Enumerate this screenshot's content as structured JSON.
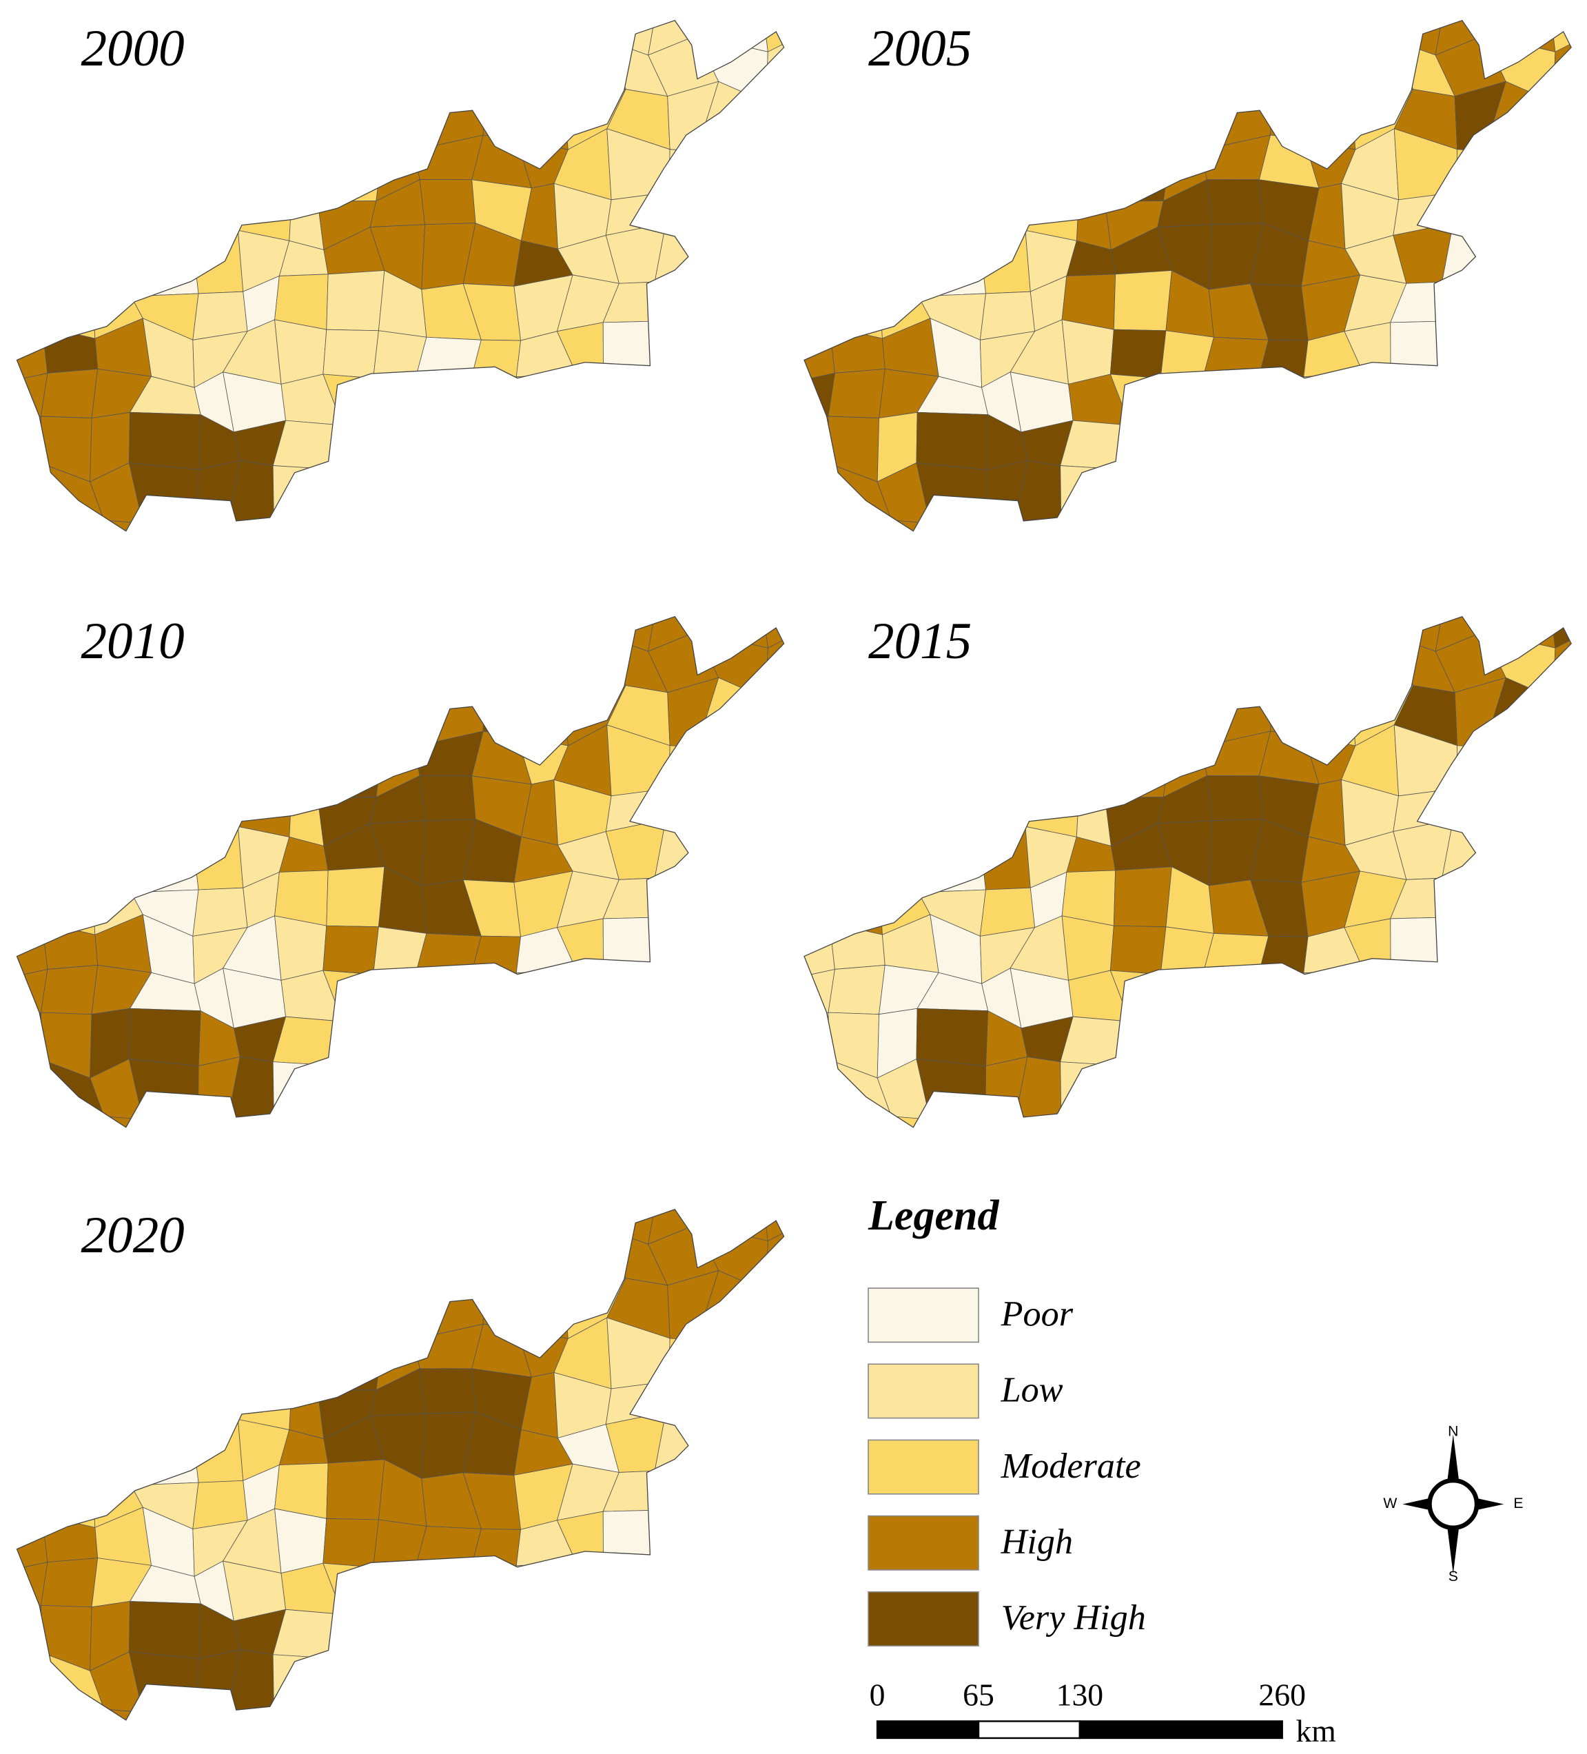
{
  "panels": [
    {
      "year": "2000"
    },
    {
      "year": "2005"
    },
    {
      "year": "2010"
    },
    {
      "year": "2015"
    },
    {
      "year": "2020"
    }
  ],
  "legend": {
    "title": "Legend",
    "items": [
      {
        "label": "Poor",
        "color": "#fbf6e6"
      },
      {
        "label": "Low",
        "color": "#fce59c"
      },
      {
        "label": "Moderate",
        "color": "#fbd766"
      },
      {
        "label": "High",
        "color": "#b97a05"
      },
      {
        "label": "Very High",
        "color": "#7a4e02"
      }
    ]
  },
  "compass": {
    "n": "N",
    "e": "E",
    "s": "S",
    "w": "W"
  },
  "scale_bar": {
    "ticks": [
      0,
      65,
      130,
      260
    ],
    "unit": "km"
  }
}
